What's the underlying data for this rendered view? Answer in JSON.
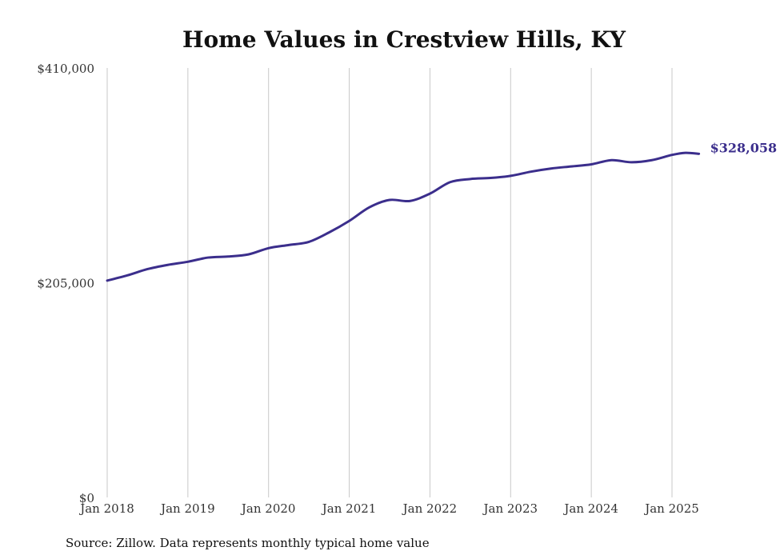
{
  "chart_data": {
    "type": "line",
    "title": "Home Values in Crestview Hills, KY",
    "source": "Source: Zillow. Data represents monthly typical home value",
    "ylim": [
      0,
      410000
    ],
    "y_ticks": [
      0,
      205000,
      410000
    ],
    "y_tick_labels": [
      "$0",
      "$205,000",
      "$410,000"
    ],
    "x_ticks": [
      "2018-01",
      "2019-01",
      "2020-01",
      "2021-01",
      "2022-01",
      "2023-01",
      "2024-01",
      "2025-01"
    ],
    "x_tick_labels": [
      "Jan 2018",
      "Jan 2019",
      "Jan 2020",
      "Jan 2021",
      "Jan 2022",
      "Jan 2023",
      "Jan 2024",
      "Jan 2025"
    ],
    "xlim": [
      "2018-01",
      "2025-05"
    ],
    "grid": "vertical",
    "color": "#3b2e8c",
    "end_label": "$328,058",
    "series": [
      {
        "points": [
          [
            "2018-01",
            207000
          ],
          [
            "2018-04",
            212000
          ],
          [
            "2018-07",
            218000
          ],
          [
            "2018-10",
            222000
          ],
          [
            "2019-01",
            225000
          ],
          [
            "2019-04",
            229000
          ],
          [
            "2019-07",
            230000
          ],
          [
            "2019-10",
            232000
          ],
          [
            "2020-01",
            238000
          ],
          [
            "2020-04",
            241000
          ],
          [
            "2020-07",
            244000
          ],
          [
            "2020-10",
            253000
          ],
          [
            "2021-01",
            264000
          ],
          [
            "2021-04",
            277000
          ],
          [
            "2021-07",
            284000
          ],
          [
            "2021-10",
            283000
          ],
          [
            "2022-01",
            290000
          ],
          [
            "2022-04",
            301000
          ],
          [
            "2022-07",
            304000
          ],
          [
            "2022-10",
            305000
          ],
          [
            "2023-01",
            307000
          ],
          [
            "2023-04",
            311000
          ],
          [
            "2023-07",
            314000
          ],
          [
            "2023-10",
            316000
          ],
          [
            "2024-01",
            318000
          ],
          [
            "2024-04",
            322000
          ],
          [
            "2024-07",
            320000
          ],
          [
            "2024-10",
            322000
          ],
          [
            "2025-01",
            327000
          ],
          [
            "2025-03",
            329000
          ],
          [
            "2025-05",
            328058
          ]
        ]
      }
    ]
  }
}
